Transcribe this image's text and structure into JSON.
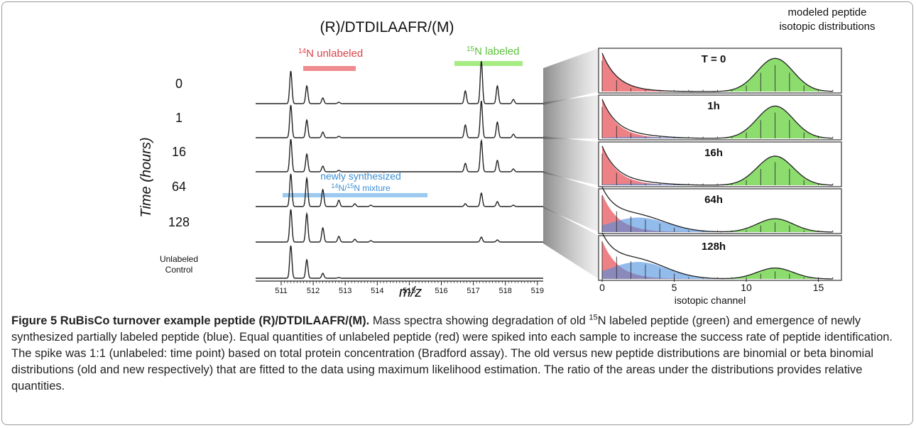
{
  "figure": {
    "title": "(R)/DTDILAAFR/(M)",
    "unlabeled_label": {
      "sup": "14",
      "text": "N unlabeled"
    },
    "labeled_label": {
      "sup": "15",
      "text": "N labeled"
    },
    "mixture_label": {
      "line1": "newly synthesized",
      "sup1": "14",
      "mid": "N/",
      "sup2": "15",
      "end": "N mixture"
    },
    "y_axis_label": "Time (hours)",
    "row_labels": [
      "0",
      "1",
      "16",
      "64",
      "128"
    ],
    "control_label": [
      "Unlabeled",
      "Control"
    ],
    "x_ticks": [
      "511",
      "512",
      "513",
      "514",
      "515",
      "516",
      "517",
      "518",
      "519"
    ],
    "x_axis_label": "m/z",
    "model_title": [
      "modeled peptide",
      "isotopic distributions"
    ],
    "model_labels": [
      "T = 0",
      "1h",
      "16h",
      "64h",
      "128h"
    ],
    "model_ticks": [
      "0",
      "5",
      "10",
      "15"
    ],
    "model_axis_label": "isotopic channel"
  },
  "caption": {
    "label": "Figure 5",
    "title": "RuBisCo turnover example peptide (R)/DTDILAAFR/(M).",
    "text_before": "Mass spectra showing degradation of old ",
    "sup": "15",
    "text_after": "N labeled peptide (green) and emergence of newly synthesized partially labeled peptide (blue). Equal quantities of unlabeled peptide (red) were spiked into each sample to increase the success rate of peptide identification. The spike was 1:1 (unlabeled: time point) based on total protein concentration (Bradford assay). The old versus new peptide distributions are binomial or beta binomial distributions (old and new respectively) that are fitted to the data using maximum likelihood estimation. The ratio of the areas under the distributions provides relative quantities."
  }
}
